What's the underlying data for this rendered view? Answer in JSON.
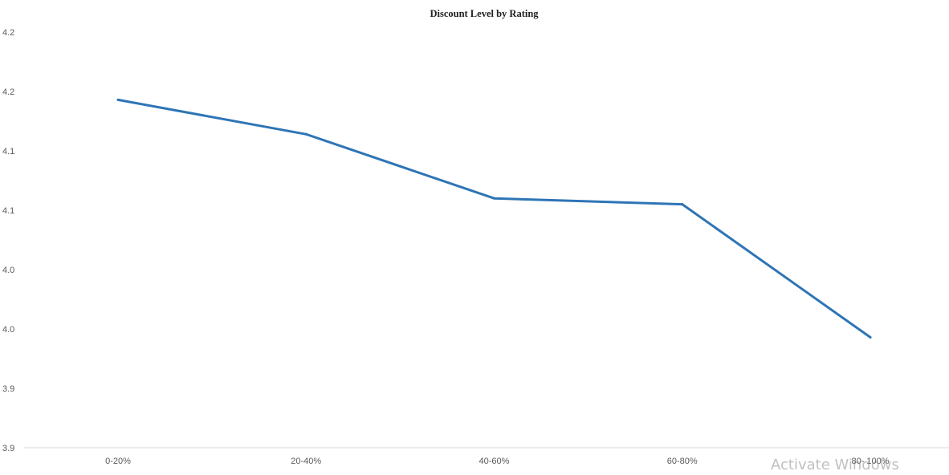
{
  "chart_data": {
    "type": "line",
    "title": "Discount Level by Rating",
    "xlabel": "",
    "ylabel": "",
    "categories": [
      "0-20%",
      "20-40%",
      "40-60%",
      "60-80%",
      "80- 100%"
    ],
    "series": [
      {
        "values": [
          4.193,
          4.164,
          4.11,
          4.105,
          3.993
        ]
      }
    ],
    "ylim": [
      3.9,
      4.25
    ],
    "yticks": [
      3.9,
      3.95,
      4.0,
      4.05,
      4.1,
      4.15,
      4.2,
      4.25
    ],
    "ytick_labels": [
      "3.9",
      "3.9",
      "4.0",
      "4.0",
      "4.1",
      "4.1",
      "4.2",
      "4.2"
    ],
    "grid": false,
    "legend": "none",
    "colors": {
      "line": "#2E75B6",
      "axis": "#D9D9D9",
      "tick_text": "#595959"
    }
  },
  "watermark": {
    "text": "Activate Windows"
  }
}
